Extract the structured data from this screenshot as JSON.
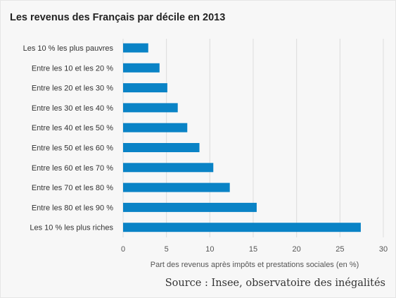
{
  "chart_data": {
    "type": "bar",
    "orientation": "horizontal",
    "title": "Les revenus des Français par décile en 2013",
    "categories": [
      "Les 10 % les plus pauvres",
      "Entre les 10 et les 20 %",
      "Entre les 20 et les 30 %",
      "Entre les 30 et les 40 %",
      "Entre les 40 et les 50 %",
      "Entre les 50 et les 60 %",
      "Entre les 60 et les 70 %",
      "Entre les 70 et les 80 %",
      "Entre les 80 et les 90 %",
      "Les 10 % les plus riches"
    ],
    "values": [
      2.9,
      4.2,
      5.1,
      6.3,
      7.4,
      8.8,
      10.4,
      12.3,
      15.4,
      27.4
    ],
    "xlabel": "Part des revenus après impôts et prestations sociales (en %)",
    "ylabel": "",
    "xlim": [
      0,
      30
    ],
    "xticks": [
      0,
      5,
      10,
      15,
      20,
      25,
      30
    ],
    "grid": "vertical",
    "bar_color": "#0a83c6",
    "grid_color": "#dcdcdc"
  },
  "source": "Source : Insee, observatoire des inégalités"
}
